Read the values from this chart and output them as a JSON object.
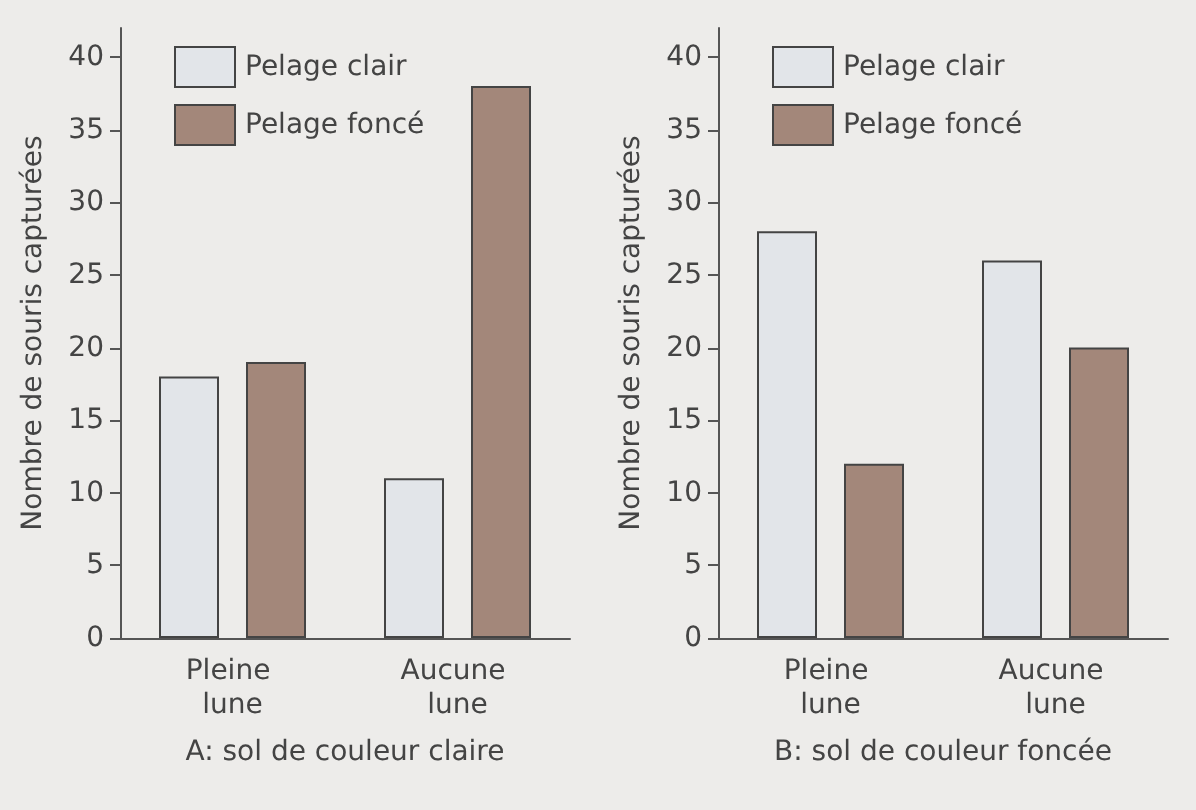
{
  "chart_data": [
    {
      "type": "bar",
      "xlabel": "A: sol de couleur claire",
      "ylabel": "Nombre de souris capturées",
      "categories": [
        "Pleine lune",
        "Aucune lune"
      ],
      "series": [
        {
          "name": "Pelage clair",
          "color": "#e2e5e9",
          "values": [
            18,
            11
          ]
        },
        {
          "name": "Pelage foncé",
          "color": "#a3877a",
          "values": [
            19,
            38
          ]
        }
      ],
      "ylim": [
        0,
        42
      ],
      "yticks": [
        0,
        5,
        10,
        15,
        20,
        25,
        30,
        35,
        40
      ],
      "grid": false,
      "legend": "top left"
    },
    {
      "type": "bar",
      "xlabel": "B: sol de couleur foncée",
      "ylabel": "Nombre de souris capturées",
      "categories": [
        "Pleine lune",
        "Aucune lune"
      ],
      "series": [
        {
          "name": "Pelage clair",
          "color": "#e2e5e9",
          "values": [
            28,
            26
          ]
        },
        {
          "name": "Pelage foncé",
          "color": "#a3877a",
          "values": [
            12,
            20
          ]
        }
      ],
      "ylim": [
        0,
        42
      ],
      "yticks": [
        0,
        5,
        10,
        15,
        20,
        25,
        30,
        35,
        40
      ],
      "grid": false,
      "legend": "top left"
    }
  ]
}
